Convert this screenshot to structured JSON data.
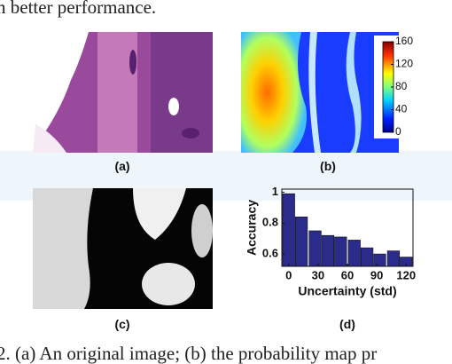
{
  "top_text": "n better performance.",
  "panels": {
    "a": "(a)",
    "b": "(b)",
    "c": "(c)",
    "d": "(d)"
  },
  "colorbar": {
    "lim": [
      0,
      160
    ],
    "ticks": [
      0,
      40,
      80,
      120,
      160
    ]
  },
  "chart_data": {
    "type": "bar",
    "x": [
      0,
      13,
      27,
      40,
      53,
      67,
      80,
      93,
      107,
      120
    ],
    "values": [
      0.99,
      0.84,
      0.75,
      0.72,
      0.71,
      0.69,
      0.64,
      0.6,
      0.62,
      0.58
    ],
    "color": "#2b2b8c",
    "xlim": [
      -7,
      127
    ],
    "xticks": [
      0,
      30,
      60,
      90,
      120
    ],
    "ylim": [
      0.52,
      1.02
    ],
    "yticks": [
      0.6,
      0.8,
      1
    ],
    "x_label": "Uncertainty (std)",
    "y_label": "Accuracy"
  },
  "caption_text": "2. (a) An original image; (b) the probability map pr"
}
